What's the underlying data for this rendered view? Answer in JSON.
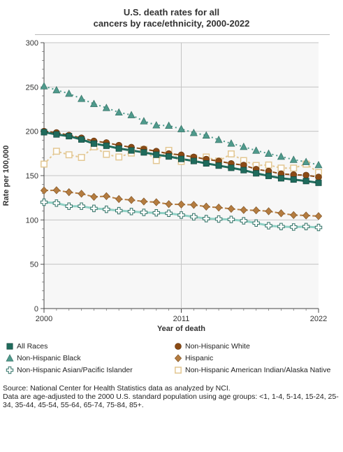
{
  "chart_data": {
    "type": "line",
    "title_line1": "U.S. death rates for all",
    "title_line2": "cancers by race/ethnicity, 2000-2022",
    "xlabel": "Year of death",
    "ylabel": "Rate per 100,000",
    "xlim": [
      2000,
      2022
    ],
    "ylim": [
      0,
      300
    ],
    "x_ticks": [
      2000,
      2011,
      2022
    ],
    "y_ticks": [
      0,
      50,
      100,
      150,
      200,
      250,
      300
    ],
    "grid": true,
    "x": [
      2000,
      2001,
      2002,
      2003,
      2004,
      2005,
      2006,
      2007,
      2008,
      2009,
      2010,
      2011,
      2012,
      2013,
      2014,
      2015,
      2016,
      2017,
      2018,
      2019,
      2020,
      2021,
      2022
    ],
    "series": [
      {
        "name": "All Races",
        "marker": "square",
        "color": "#1f6b5c",
        "values": [
          199.0,
          196.5,
          194.5,
          190.8,
          186.1,
          183.7,
          180.6,
          178.4,
          176.2,
          173.6,
          171.6,
          168.8,
          166.5,
          163.8,
          161.3,
          158.8,
          156.2,
          152.6,
          149.7,
          147.0,
          145.6,
          143.9,
          141.9
        ]
      },
      {
        "name": "Non-Hispanic White",
        "marker": "circle",
        "color": "#8b4a14",
        "values": [
          200.0,
          198.5,
          195.6,
          192.5,
          189.0,
          187.2,
          184.2,
          182.0,
          180.0,
          177.5,
          174.8,
          173.3,
          171.0,
          168.5,
          166.4,
          163.6,
          161.8,
          157.2,
          155.0,
          152.0,
          151.0,
          150.5,
          148.4
        ]
      },
      {
        "name": "Non-Hispanic Black",
        "marker": "triangle",
        "color": "#4f9a8c",
        "values": [
          251.0,
          246.5,
          242.6,
          236.7,
          231.0,
          226.5,
          221.4,
          218.4,
          211.5,
          206.9,
          206.4,
          202.6,
          198.3,
          195.4,
          190.5,
          186.3,
          182.6,
          178.3,
          174.9,
          171.5,
          168.0,
          165.5,
          162.0
        ]
      },
      {
        "name": "Hispanic",
        "marker": "diamond",
        "color": "#b47c40",
        "values": [
          133.2,
          133.5,
          131.3,
          129.6,
          126.0,
          126.8,
          123.6,
          122.5,
          120.8,
          120.0,
          117.8,
          117.5,
          117.0,
          115.0,
          114.0,
          112.5,
          111.2,
          110.8,
          109.8,
          107.5,
          105.5,
          105.0,
          104.3
        ]
      },
      {
        "name": "Non-Hispanic Asian/Pacific Islander",
        "marker": "cross",
        "color": "#8fd0c4",
        "values": [
          120.0,
          119.0,
          115.5,
          115.5,
          113.0,
          112.0,
          110.5,
          109.5,
          108.5,
          108.0,
          107.5,
          105.5,
          103.5,
          101.5,
          101.0,
          100.5,
          99.0,
          96.5,
          93.5,
          92.5,
          92.0,
          92.5,
          91.5
        ]
      },
      {
        "name": "Non-Hispanic American Indian/Alaska Native",
        "marker": "open-square",
        "color": "#e3c792",
        "values": [
          163.0,
          177.5,
          173.5,
          170.5,
          182.5,
          174.0,
          171.0,
          175.5,
          179.5,
          167.0,
          178.5,
          166.0,
          170.0,
          171.0,
          166.5,
          174.5,
          167.0,
          161.5,
          162.0,
          158.5,
          158.5,
          163.0,
          153.5
        ]
      }
    ],
    "legend_position": "bottom"
  },
  "source_text": "Source: National Center for Health Statistics data as analyzed by NCI.",
  "note_text": "Data are age-adjusted to the 2000 U.S. standard population using age groups: <1, 1-4, 5-14, 15-24, 25-34, 35-44, 45-54, 55-64, 65-74, 75-84, 85+."
}
